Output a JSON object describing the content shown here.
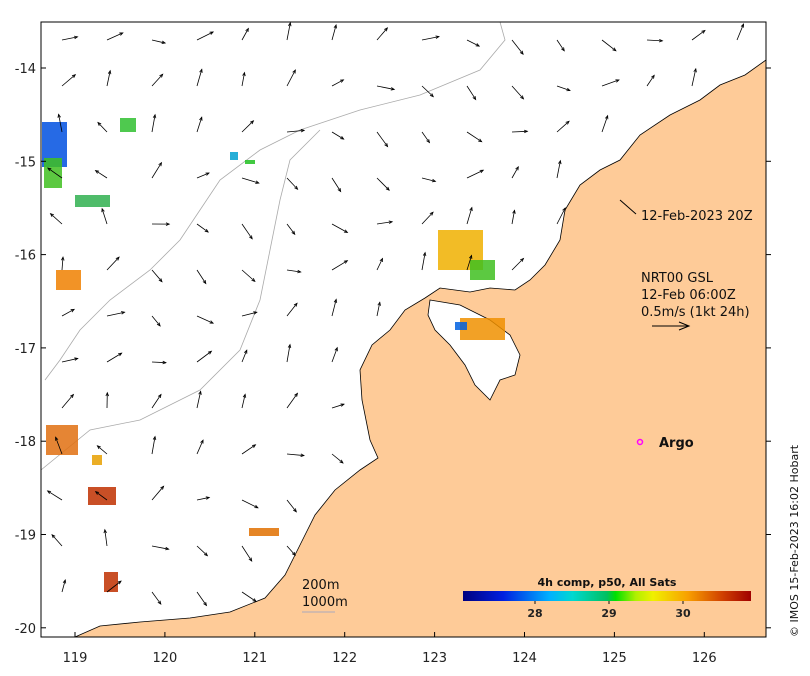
{
  "map": {
    "x_ticks": [
      "119",
      "120",
      "121",
      "122",
      "123",
      "124",
      "125",
      "126"
    ],
    "y_ticks": [
      "-14",
      "-15",
      "-16",
      "-17",
      "-18",
      "-19",
      "-20"
    ],
    "land_color": "#fecb98",
    "track_label": "12-Feb-2023 20Z",
    "current_legend": {
      "line1": "NRT00 GSL",
      "line2": "12-Feb 06:00Z",
      "line3": "0.5m/s (1kt 24h)"
    },
    "argo_label": "Argo",
    "argo_color": "#ff00ff",
    "isobaths": {
      "line1": "200m",
      "line2": "1000m"
    },
    "colorbar": {
      "title": "4h comp, p50, All Sats",
      "ticks": [
        "28",
        "29",
        "30"
      ],
      "min_c": 27.0,
      "max_c": 30.9
    },
    "credit": "© IMOS 15-Feb-2023 16:02 Hobart"
  }
}
